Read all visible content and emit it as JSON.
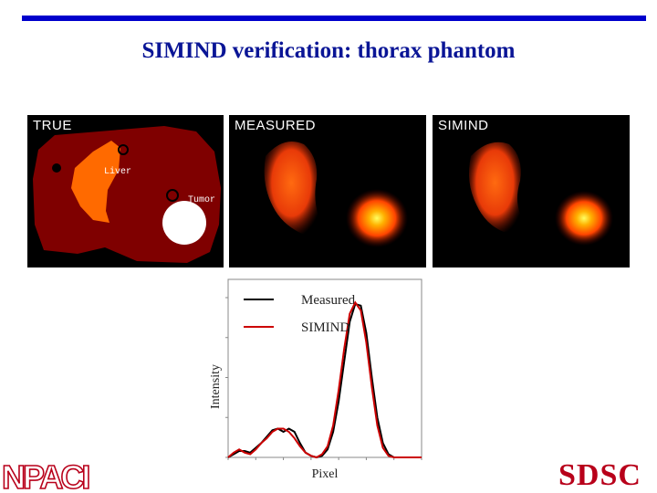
{
  "slide": {
    "title": "SIMIND verification: thorax phantom",
    "accent_color": "#0000cc",
    "title_color": "#0a1596"
  },
  "panels": {
    "true_label": "TRUE",
    "measured_label": "MEASURED",
    "simind_label": "SIMIND",
    "liver_label": "Liver",
    "tumor_label": "Tumor"
  },
  "chart_data": {
    "type": "line",
    "xlabel": "Pixel",
    "ylabel": "Intensity",
    "legend_position": "top-left",
    "xlim": [
      0,
      70
    ],
    "ylim": [
      0,
      1
    ],
    "series": [
      {
        "name": "Measured",
        "color": "#000000",
        "x": [
          0,
          2,
          4,
          6,
          8,
          10,
          12,
          14,
          16,
          18,
          20,
          22,
          24,
          26,
          28,
          30,
          32,
          34,
          36,
          38,
          40,
          42,
          44,
          46,
          48,
          50,
          52,
          54,
          56,
          58,
          60,
          62,
          64,
          66,
          68,
          70
        ],
        "y": [
          0.0,
          0.02,
          0.04,
          0.04,
          0.03,
          0.06,
          0.09,
          0.13,
          0.17,
          0.18,
          0.16,
          0.18,
          0.16,
          0.09,
          0.03,
          0.01,
          0.0,
          0.01,
          0.05,
          0.16,
          0.35,
          0.6,
          0.85,
          0.96,
          0.95,
          0.78,
          0.5,
          0.25,
          0.09,
          0.02,
          0.0,
          0.0,
          0.0,
          0.0,
          0.0,
          0.0
        ]
      },
      {
        "name": "SIMIND",
        "color": "#cc0000",
        "x": [
          0,
          2,
          4,
          6,
          8,
          10,
          12,
          14,
          16,
          18,
          20,
          22,
          24,
          26,
          28,
          30,
          32,
          34,
          36,
          38,
          40,
          42,
          44,
          46,
          48,
          50,
          52,
          54,
          56,
          58,
          60,
          62,
          64,
          66,
          68,
          70
        ],
        "y": [
          0.0,
          0.03,
          0.05,
          0.03,
          0.02,
          0.05,
          0.09,
          0.12,
          0.16,
          0.18,
          0.18,
          0.16,
          0.12,
          0.07,
          0.03,
          0.01,
          0.0,
          0.02,
          0.07,
          0.2,
          0.42,
          0.68,
          0.9,
          0.97,
          0.92,
          0.72,
          0.44,
          0.2,
          0.06,
          0.01,
          0.0,
          0.0,
          0.0,
          0.0,
          0.0,
          0.0
        ]
      }
    ]
  },
  "logos": {
    "left": "NPACI",
    "right": "SDSC",
    "right_color": "#b8001a"
  }
}
